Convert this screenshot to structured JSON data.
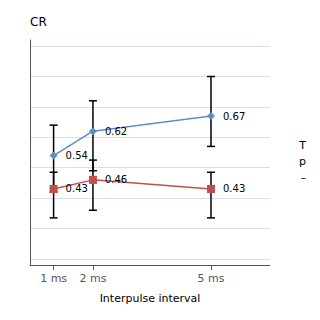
{
  "chart_data": {
    "type": "line",
    "x": [
      1,
      2,
      5
    ],
    "xlim": [
      0.4,
      6.5
    ],
    "xticks": [
      {
        "value": 1,
        "label": "1 ms"
      },
      {
        "value": 2,
        "label": "2 ms"
      },
      {
        "value": 5,
        "label": "5 ms"
      }
    ],
    "ylim": [
      0.18,
      0.92
    ],
    "yticks": [
      0.2,
      0.3,
      0.4,
      0.5,
      0.6,
      0.7,
      0.8,
      0.9
    ],
    "xlabel": "Interpulse interval",
    "ylabel": "CR",
    "annotations": [
      "T",
      "p",
      "–"
    ],
    "grid": true,
    "tick_labels": "x",
    "data_labels": true,
    "series": [
      {
        "color": "#5b8ec4",
        "marker": "diamond",
        "values": [
          0.54,
          0.62,
          0.67
        ],
        "yerr_lower": [
          0.12,
          0.13,
          0.1
        ],
        "yerr_upper": [
          0.1,
          0.1,
          0.13
        ]
      },
      {
        "color": "#c0504d",
        "marker": "square",
        "values": [
          0.43,
          0.46,
          0.43
        ],
        "yerr_lower": [
          0.095,
          0.1,
          0.095
        ],
        "yerr_upper": [
          0.055,
          0.065,
          0.055
        ]
      }
    ]
  }
}
